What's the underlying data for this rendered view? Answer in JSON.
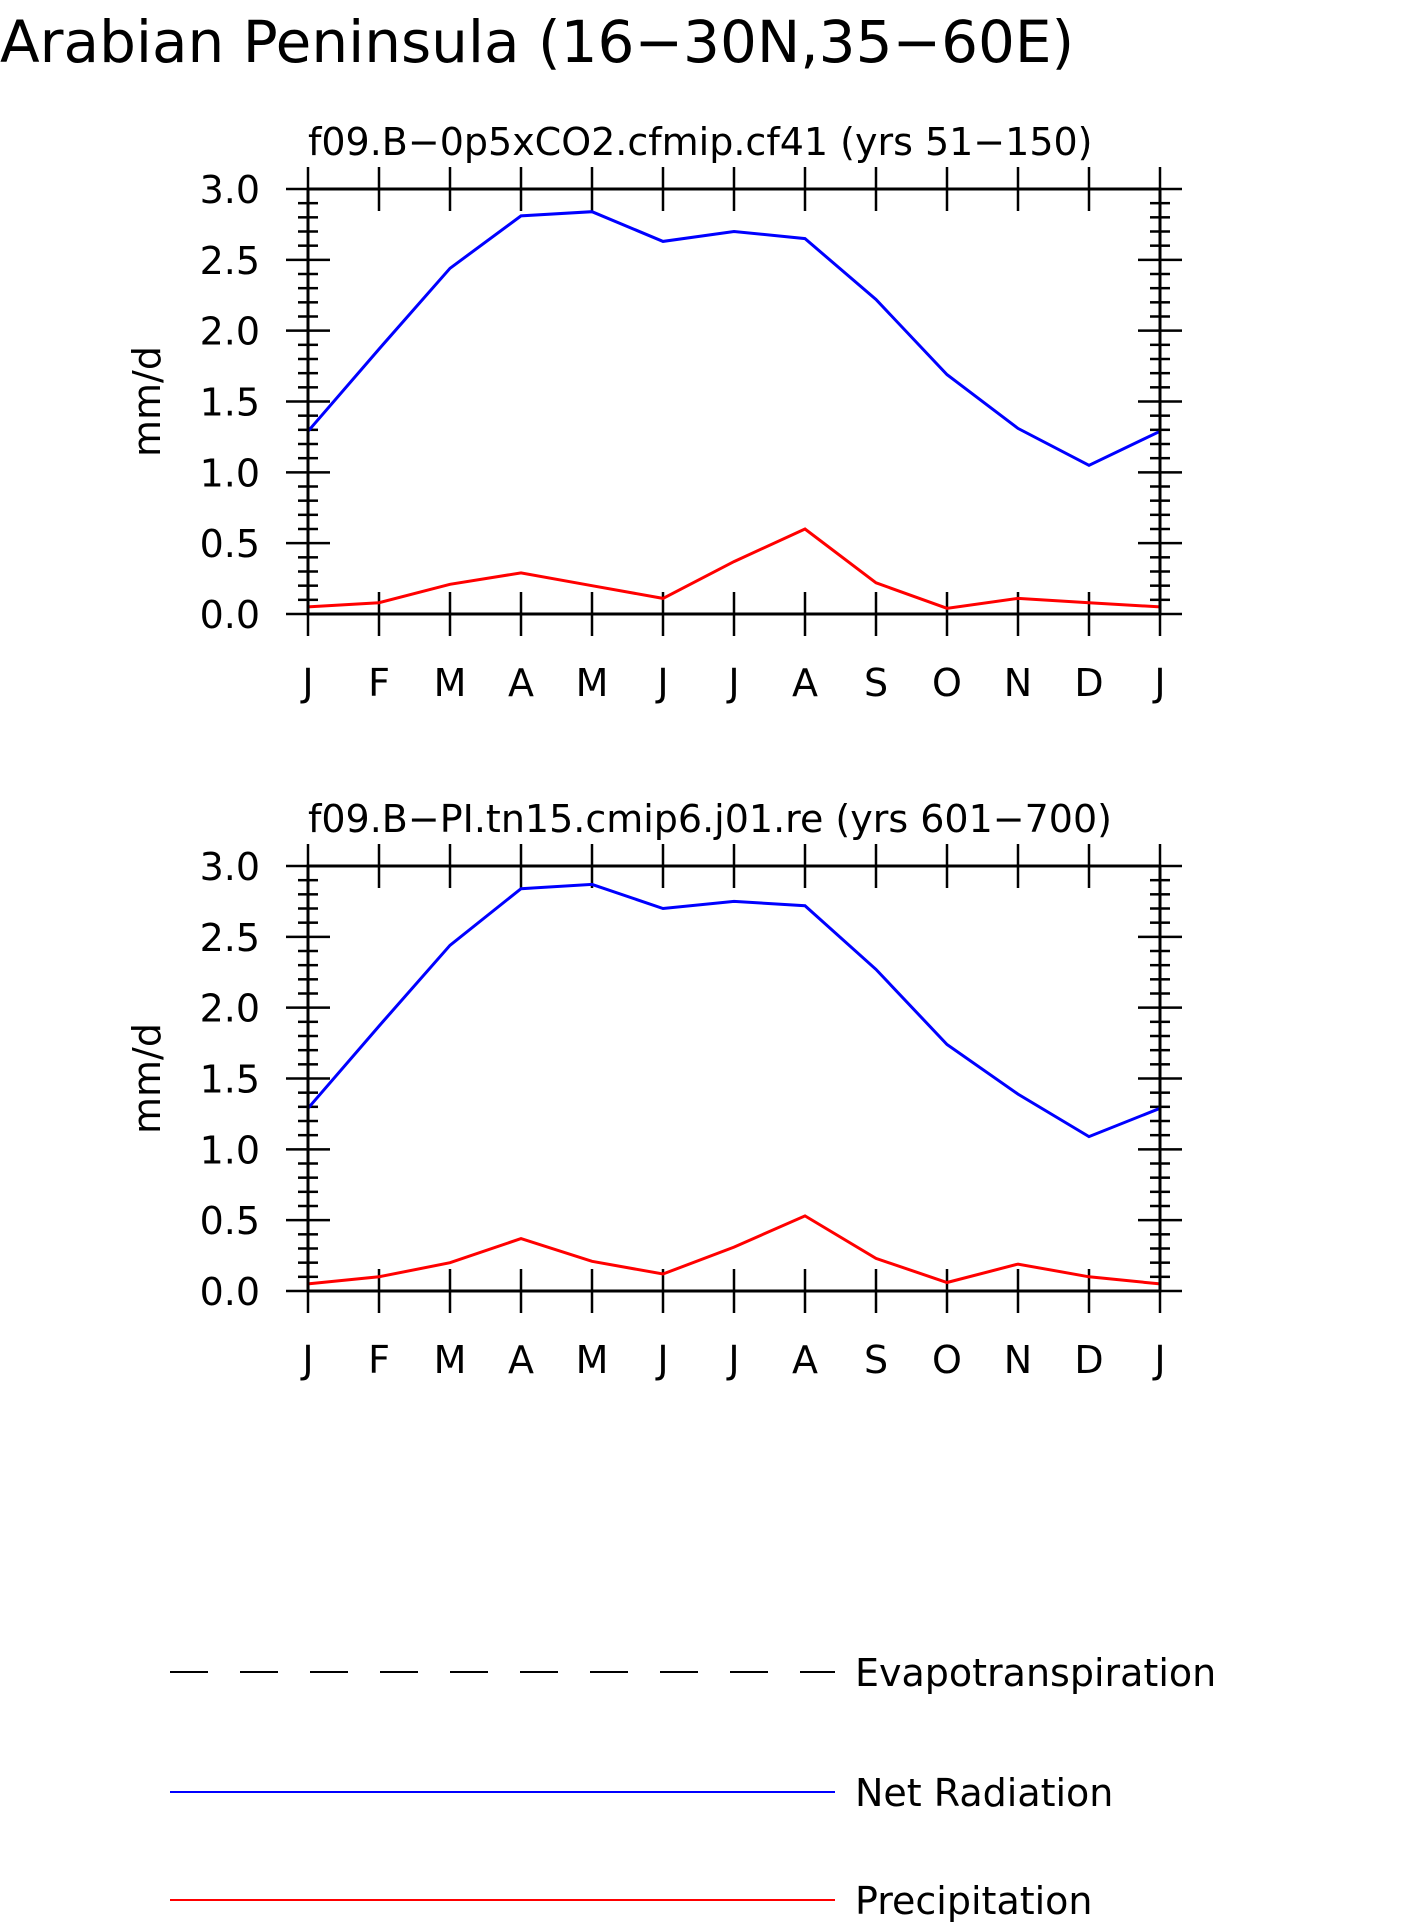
{
  "figure_title": "Arabian Peninsula (16−30N,35−60E)",
  "colors": {
    "net_radiation": "#0000ff",
    "precipitation": "#ff0000",
    "evapotranspiration": "#000000",
    "axes": "#000000",
    "background": "#ffffff"
  },
  "chart_data": [
    {
      "type": "line",
      "title": "f09.B−0p5xCO2.cfmip.cf41 (yrs 51−150)",
      "xlabel": "",
      "ylabel": "mm/d",
      "categories": [
        "J",
        "F",
        "M",
        "A",
        "M",
        "J",
        "J",
        "A",
        "S",
        "O",
        "N",
        "D",
        "J"
      ],
      "ylim": [
        0,
        3
      ],
      "yticks": [
        "0.0",
        "0.5",
        "1.0",
        "1.5",
        "2.0",
        "2.5",
        "3.0"
      ],
      "grid": false,
      "series": [
        {
          "name": "Net Radiation",
          "color": "#0000ff",
          "values": [
            1.29,
            1.87,
            2.44,
            2.81,
            2.84,
            2.63,
            2.7,
            2.65,
            2.22,
            1.69,
            1.31,
            1.05,
            1.29
          ]
        },
        {
          "name": "Precipitation",
          "color": "#ff0000",
          "values": [
            0.05,
            0.08,
            0.21,
            0.29,
            0.2,
            0.11,
            0.37,
            0.6,
            0.22,
            0.04,
            0.11,
            0.08,
            0.05
          ]
        }
      ]
    },
    {
      "type": "line",
      "title": "f09.B−PI.tn15.cmip6.j01.re (yrs 601−700)",
      "xlabel": "",
      "ylabel": "mm/d",
      "categories": [
        "J",
        "F",
        "M",
        "A",
        "M",
        "J",
        "J",
        "A",
        "S",
        "O",
        "N",
        "D",
        "J"
      ],
      "ylim": [
        0,
        3
      ],
      "yticks": [
        "0.0",
        "0.5",
        "1.0",
        "1.5",
        "2.0",
        "2.5",
        "3.0"
      ],
      "grid": false,
      "series": [
        {
          "name": "Net Radiation",
          "color": "#0000ff",
          "values": [
            1.29,
            1.87,
            2.44,
            2.84,
            2.87,
            2.7,
            2.75,
            2.72,
            2.27,
            1.74,
            1.39,
            1.09,
            1.29
          ]
        },
        {
          "name": "Precipitation",
          "color": "#ff0000",
          "values": [
            0.05,
            0.1,
            0.2,
            0.37,
            0.21,
            0.12,
            0.31,
            0.53,
            0.23,
            0.06,
            0.19,
            0.1,
            0.05
          ]
        }
      ]
    }
  ],
  "legend": {
    "placement": "bottom",
    "items": [
      {
        "label": "Evapotranspiration",
        "color": "#000000",
        "style": "dashed"
      },
      {
        "label": "Net Radiation",
        "color": "#0000ff",
        "style": "solid"
      },
      {
        "label": "Precipitation",
        "color": "#ff0000",
        "style": "solid"
      }
    ]
  }
}
